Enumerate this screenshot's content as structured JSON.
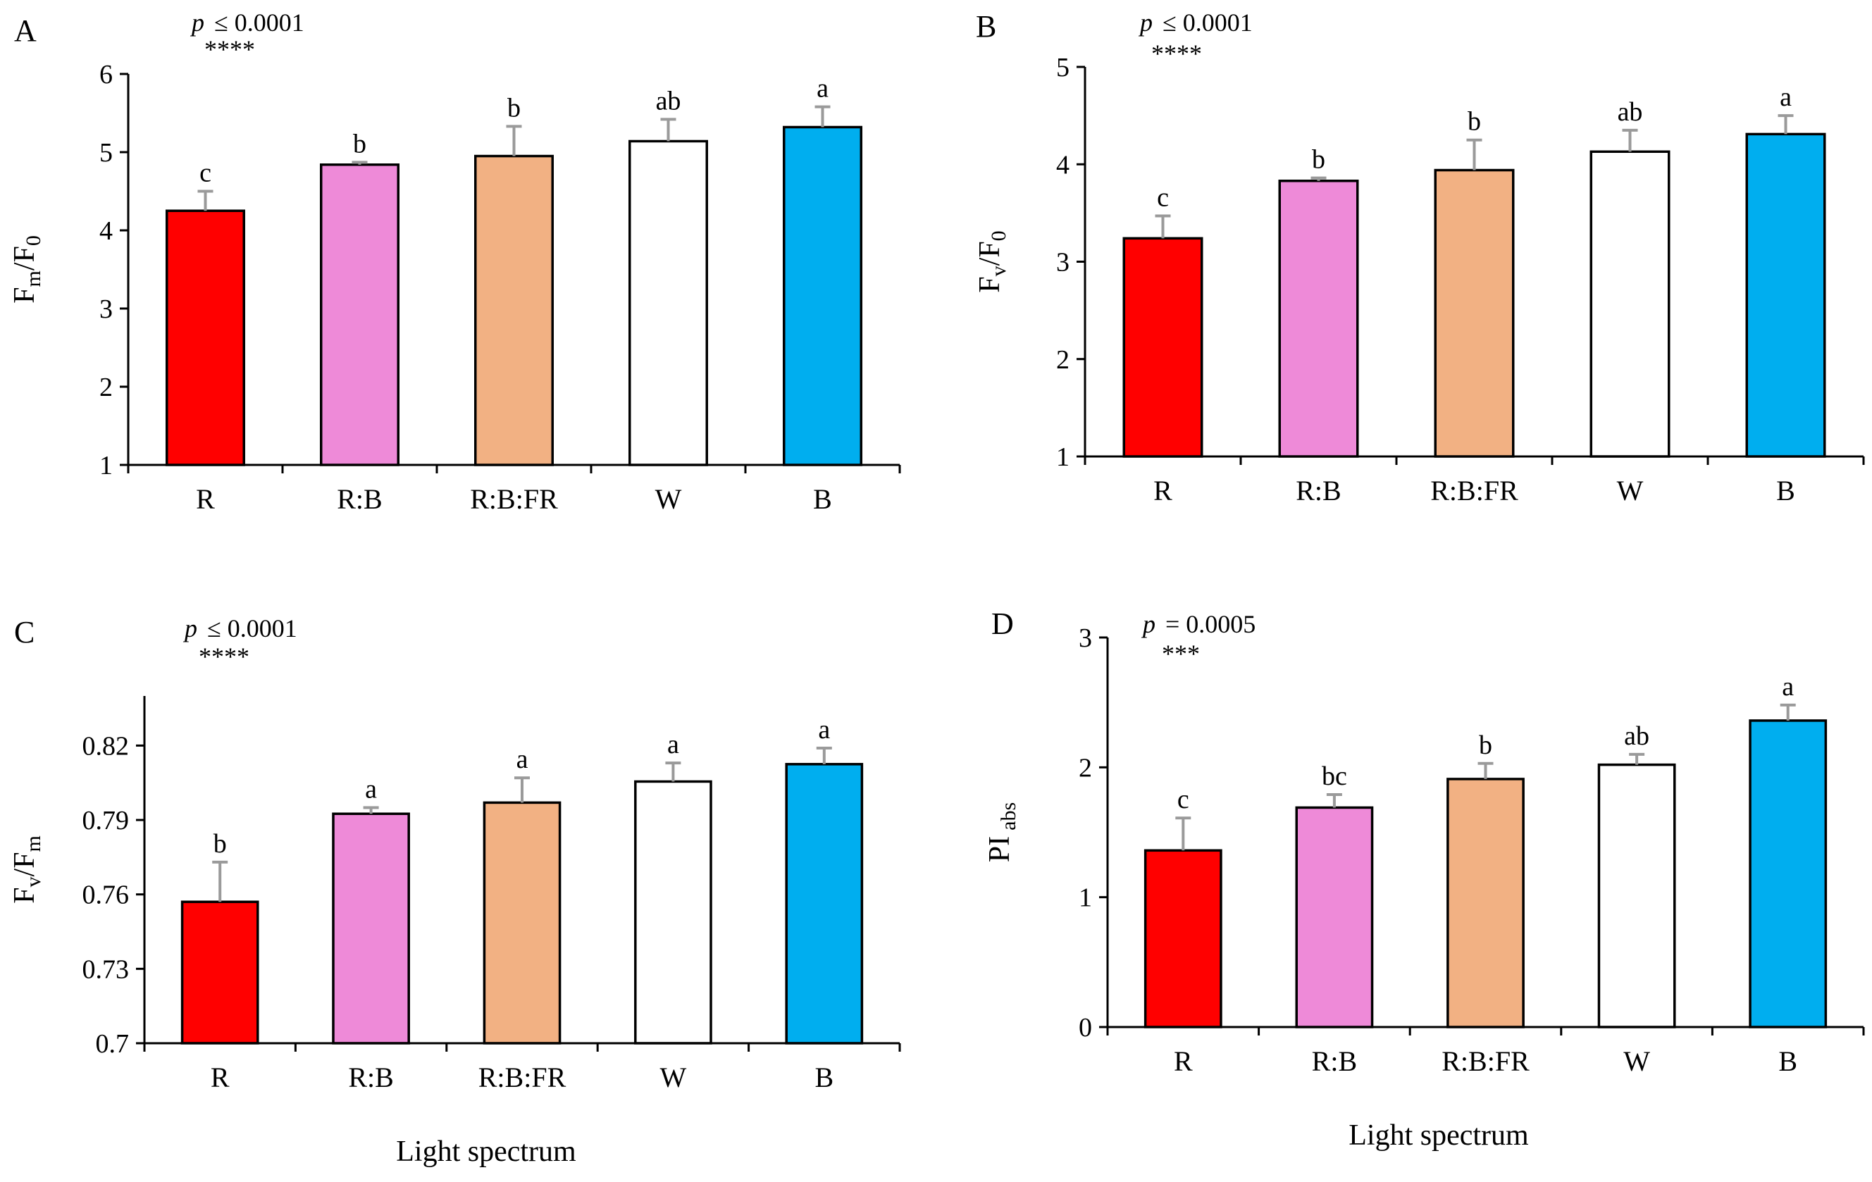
{
  "chart_data": [
    {
      "type": "bar",
      "panel": "A",
      "ylabel": {
        "main": "F",
        "sub1": "m",
        "mid": "/F",
        "sub2": "0"
      },
      "ylim": [
        1,
        6
      ],
      "yticks": [
        1,
        2,
        3,
        4,
        5,
        6
      ],
      "tick_labels": [
        "1",
        "2",
        "3",
        "4",
        "5",
        "6"
      ],
      "categories": [
        "R",
        "R:B",
        "R:B:FR",
        "W",
        "B"
      ],
      "values": [
        4.25,
        4.84,
        4.95,
        5.14,
        5.32
      ],
      "errors": [
        0.25,
        0.03,
        0.38,
        0.28,
        0.26
      ],
      "letters": [
        "c",
        "b",
        "b",
        "ab",
        "a"
      ],
      "colors": [
        "#ff0000",
        "#ee8ad8",
        "#f2b183",
        "#ffffff",
        "#00aeef"
      ],
      "p_label": "p",
      "p_value": "≤ 0.0001",
      "stars": "****"
    },
    {
      "type": "bar",
      "panel": "B",
      "ylabel": {
        "main": "F",
        "sub1": "v",
        "mid": "/F",
        "sub2": "0"
      },
      "ylim": [
        1,
        5
      ],
      "yticks": [
        1,
        2,
        3,
        4,
        5
      ],
      "tick_labels": [
        "1",
        "2",
        "3",
        "4",
        "5"
      ],
      "categories": [
        "R",
        "R:B",
        "R:B:FR",
        "W",
        "B"
      ],
      "values": [
        3.24,
        3.83,
        3.94,
        4.13,
        4.31
      ],
      "errors": [
        0.23,
        0.03,
        0.31,
        0.22,
        0.19
      ],
      "letters": [
        "c",
        "b",
        "b",
        "ab",
        "a"
      ],
      "colors": [
        "#ff0000",
        "#ee8ad8",
        "#f2b183",
        "#ffffff",
        "#00aeef"
      ],
      "p_label": "p",
      "p_value": "≤ 0.0001",
      "stars": "****"
    },
    {
      "type": "bar",
      "panel": "C",
      "ylabel": {
        "main": "F",
        "sub1": "v",
        "mid": "/F",
        "sub2": "m"
      },
      "ylim": [
        0.7,
        0.84
      ],
      "yticks": [
        0.7,
        0.73,
        0.76,
        0.79,
        0.82
      ],
      "tick_labels": [
        "0.7",
        "0.73",
        "0.76",
        "0.79",
        "0.82"
      ],
      "categories": [
        "R",
        "R:B",
        "R:B:FR",
        "W",
        "B"
      ],
      "values": [
        0.757,
        0.7925,
        0.797,
        0.8055,
        0.8125
      ],
      "errors": [
        0.016,
        0.0025,
        0.01,
        0.0075,
        0.0065
      ],
      "letters": [
        "b",
        "a",
        "a",
        "a",
        "a"
      ],
      "colors": [
        "#ff0000",
        "#ee8ad8",
        "#f2b183",
        "#ffffff",
        "#00aeef"
      ],
      "p_label": "p",
      "p_value": "≤ 0.0001",
      "stars": "****"
    },
    {
      "type": "bar",
      "panel": "D",
      "ylabel": {
        "main": "PI",
        "sub1": "abs",
        "mid": "",
        "sub2": ""
      },
      "ylim": [
        0,
        3
      ],
      "yticks": [
        0,
        1,
        2,
        3
      ],
      "tick_labels": [
        "0",
        "1",
        "2",
        "3"
      ],
      "categories": [
        "R",
        "R:B",
        "R:B:FR",
        "W",
        "B"
      ],
      "values": [
        1.36,
        1.69,
        1.91,
        2.02,
        2.36
      ],
      "errors": [
        0.25,
        0.1,
        0.12,
        0.08,
        0.12
      ],
      "letters": [
        "c",
        "bc",
        "b",
        "ab",
        "a"
      ],
      "colors": [
        "#ff0000",
        "#ee8ad8",
        "#f2b183",
        "#ffffff",
        "#00aeef"
      ],
      "p_label": "p",
      "p_value": "= 0.0005",
      "stars": "***"
    }
  ],
  "xlabel": "Light spectrum"
}
